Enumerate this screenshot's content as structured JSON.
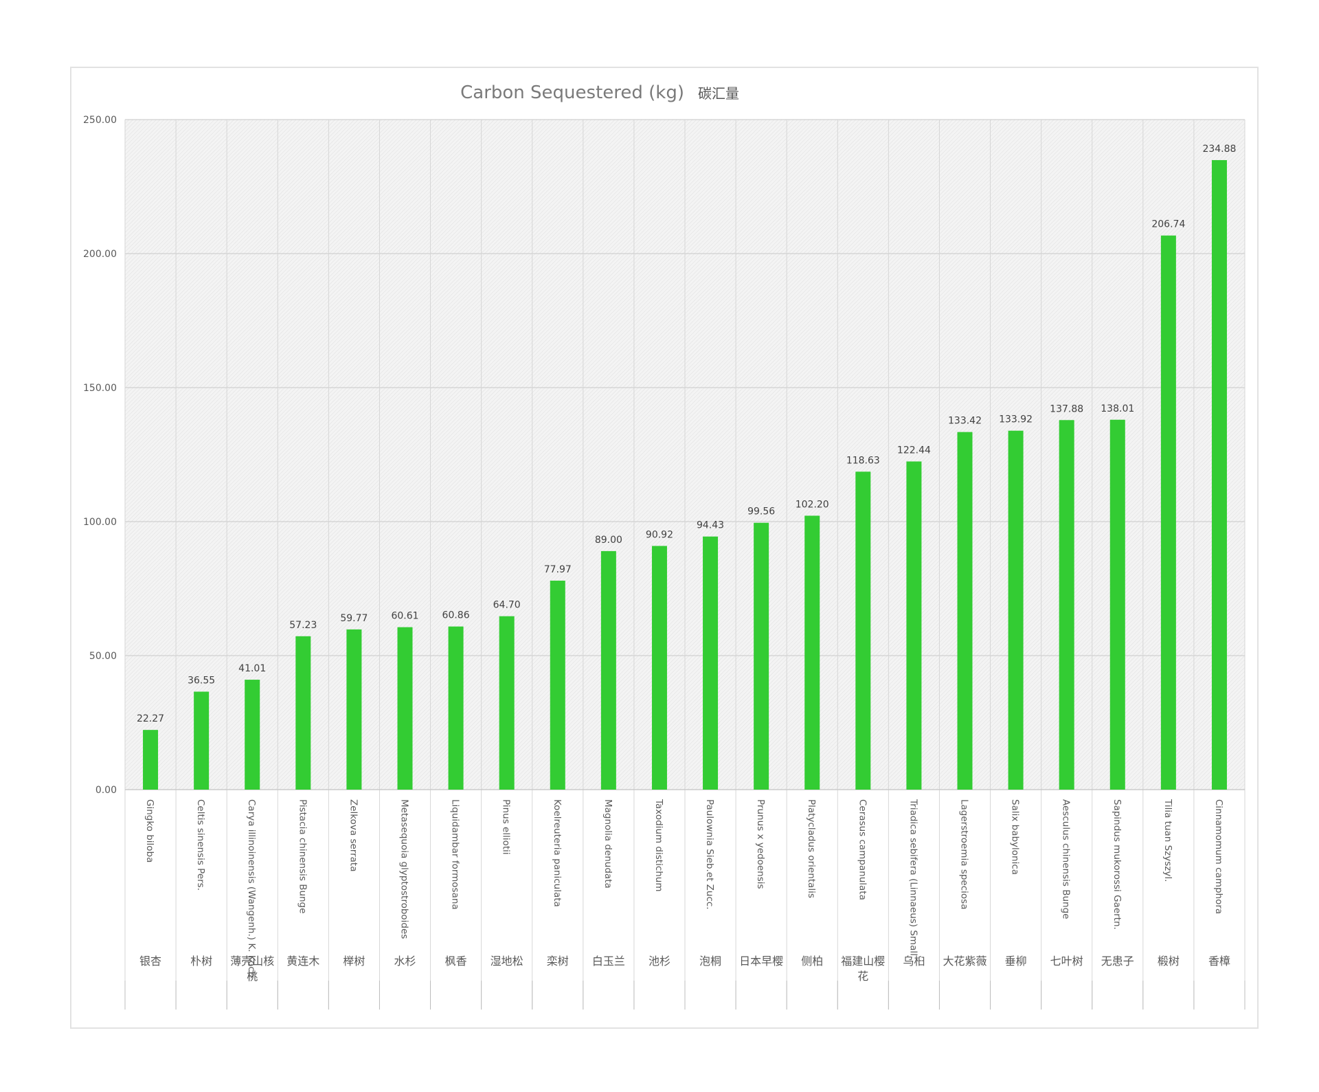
{
  "chart_data": {
    "type": "bar",
    "title": "Carbon Sequestered (kg)",
    "subtitle": "碳汇量",
    "ylim": [
      0,
      250
    ],
    "yticks": [
      "0.00",
      "50.00",
      "100.00",
      "150.00",
      "200.00",
      "250.00"
    ],
    "grid": true,
    "bar_color": "#33cc33",
    "categories_latin": [
      "Gingko biloba",
      "Celtis sinensis Pers.",
      "Carya illinoinensis (Wangenh.) K. Koch",
      "Pistacia chinensis Bunge",
      "Zelkova serrata",
      "Metasequoia glyptostroboides",
      "Liquidambar formosana",
      "Pinus elliotii",
      "Koelreuteria paniculata",
      "Magnolia denudata",
      "Taxodium distichum",
      "Paulownia Sieb.et Zucc.",
      "Prunus x yedoensis",
      "Platycladus orientalis",
      "Cerasus campanulata",
      "Triadica sebifera (Linnaeus) Small",
      "Lagerstroemia speciosa",
      "Salix babylonica",
      "Aesculus chinensis Bunge",
      "Sapindus mukorossi Gaertn.",
      "Tilia tuan Szyszyl.",
      "Cinnamomum camphora"
    ],
    "categories_cn": [
      [
        "银杏"
      ],
      [
        "朴树"
      ],
      [
        "薄壳山核",
        "桃"
      ],
      [
        "黄连木"
      ],
      [
        "榉树"
      ],
      [
        "水杉"
      ],
      [
        "枫香"
      ],
      [
        "湿地松"
      ],
      [
        "栾树"
      ],
      [
        "白玉兰"
      ],
      [
        "池杉"
      ],
      [
        "泡桐"
      ],
      [
        "日本早樱"
      ],
      [
        "侧柏"
      ],
      [
        "福建山樱",
        "花"
      ],
      [
        "乌桕"
      ],
      [
        "大花紫薇"
      ],
      [
        "垂柳"
      ],
      [
        "七叶树"
      ],
      [
        "无患子"
      ],
      [
        "椴树"
      ],
      [
        "香樟"
      ]
    ],
    "values": [
      22.27,
      36.55,
      41.01,
      57.23,
      59.77,
      60.61,
      60.86,
      64.7,
      77.97,
      89.0,
      90.92,
      94.43,
      99.56,
      102.2,
      118.63,
      122.44,
      133.42,
      133.92,
      137.88,
      138.01,
      206.74,
      234.88
    ],
    "labels": [
      "22.27",
      "36.55",
      "41.01",
      "57.23",
      "59.77",
      "60.61",
      "60.86",
      "64.70",
      "77.97",
      "89.00",
      "90.92",
      "94.43",
      "99.56",
      "102.20",
      "118.63",
      "122.44",
      "133.42",
      "133.92",
      "137.88",
      "138.01",
      "206.74",
      "234.88"
    ]
  }
}
